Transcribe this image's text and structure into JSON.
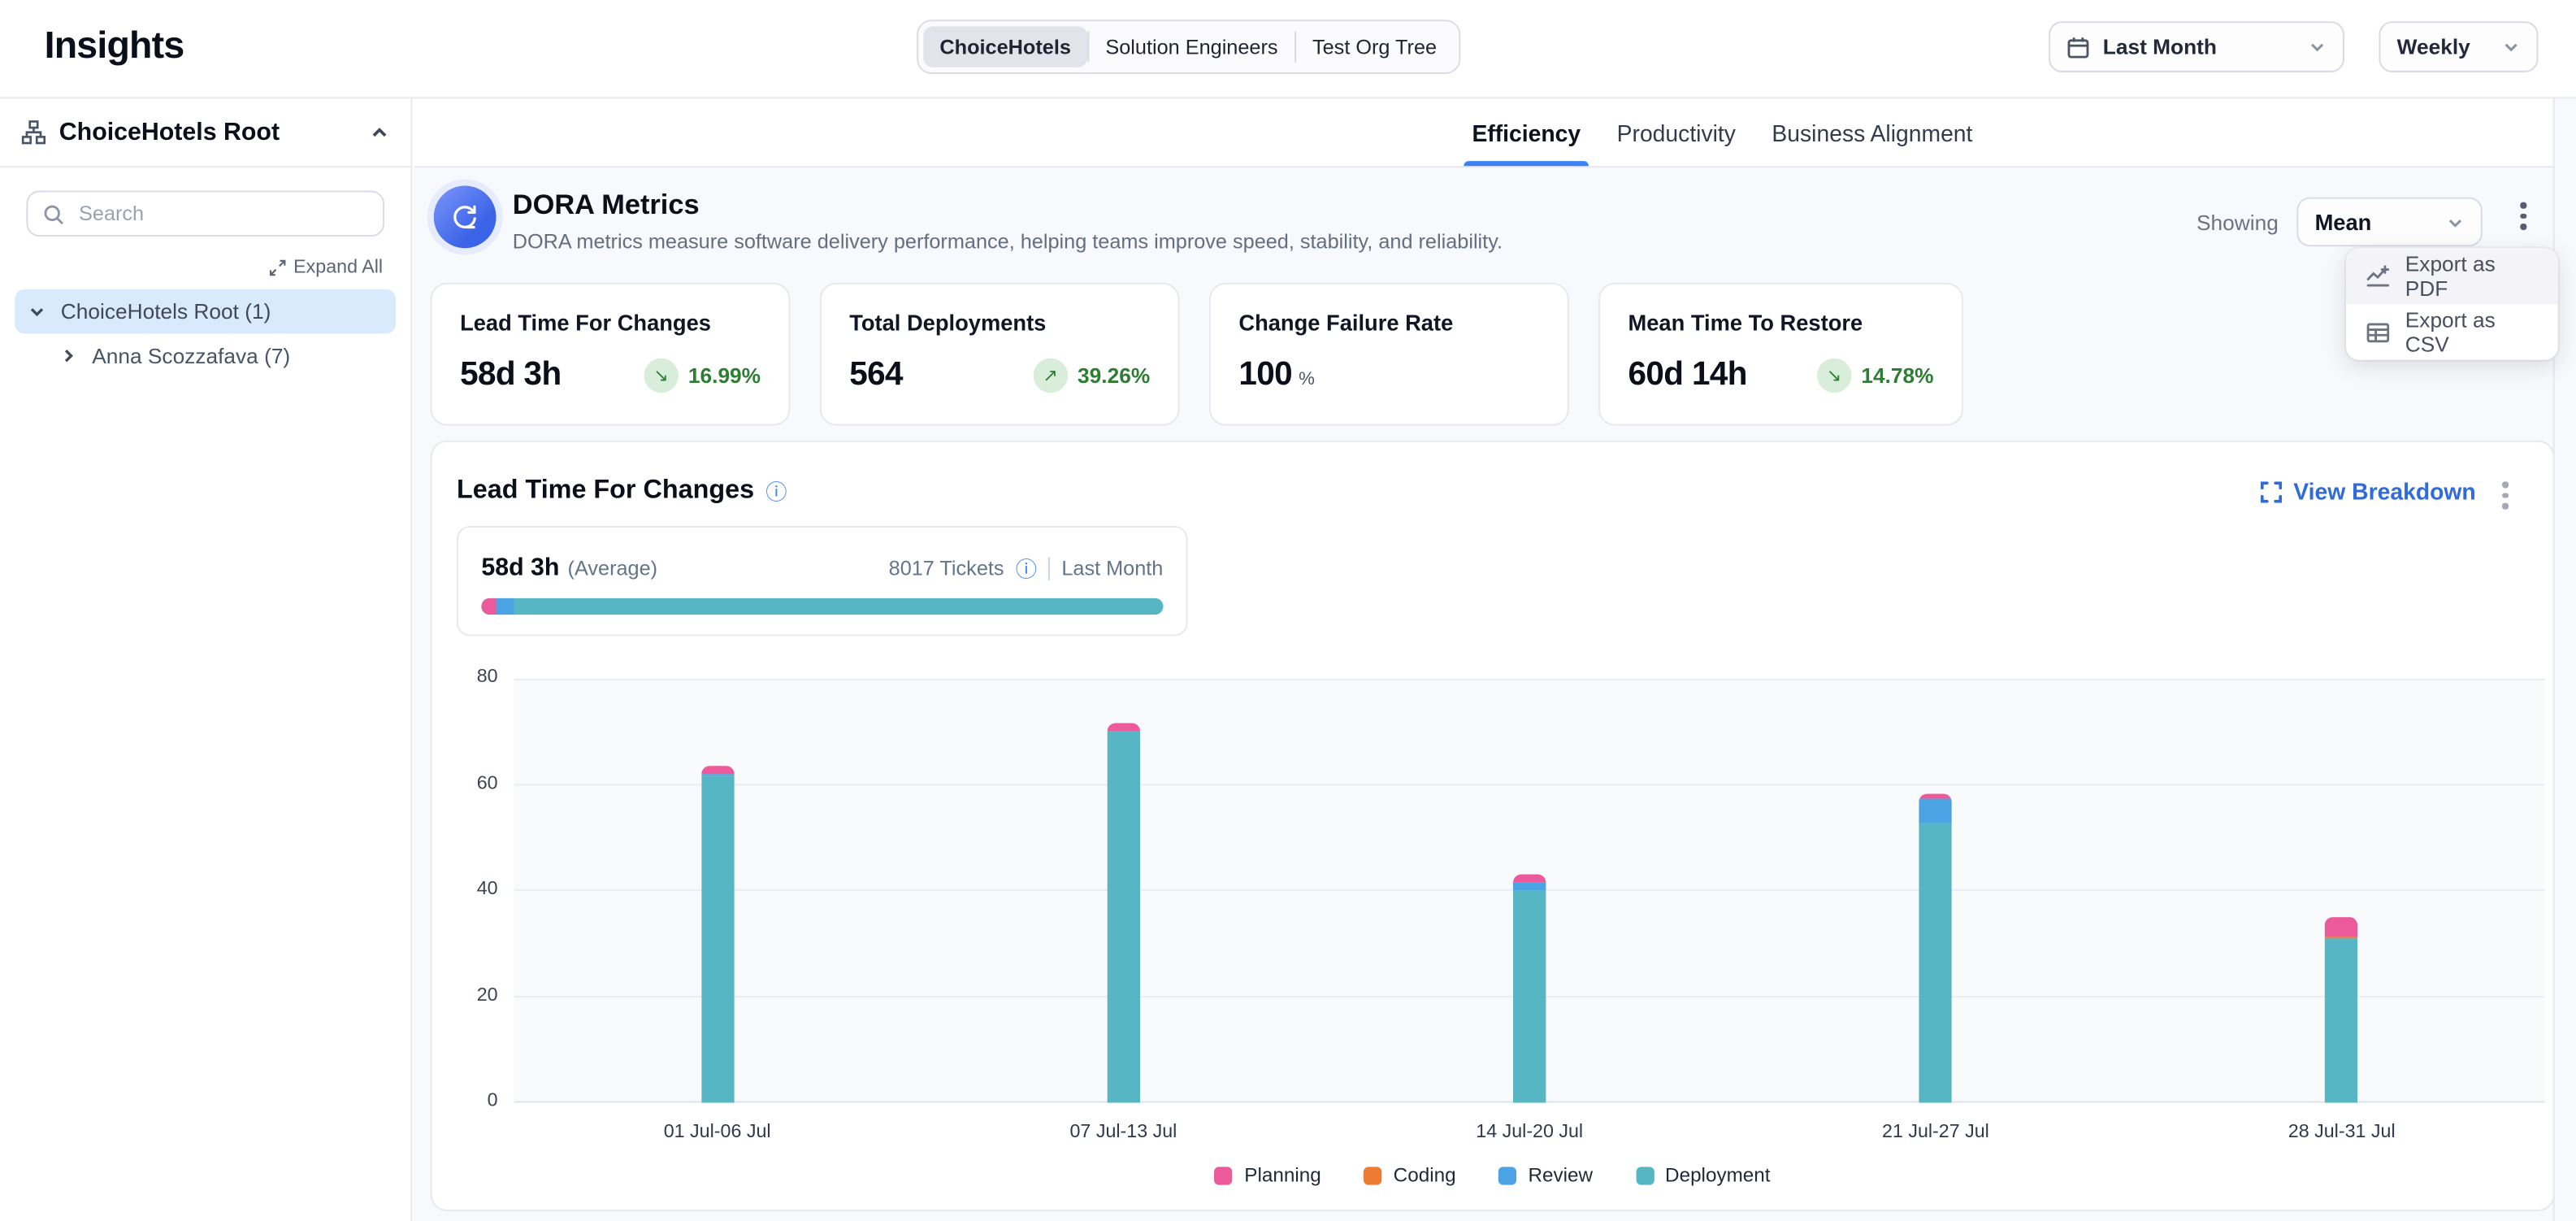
{
  "header": {
    "title": "Insights",
    "org_tabs": [
      {
        "label": "ChoiceHotels",
        "active": true
      },
      {
        "label": "Solution Engineers",
        "active": false
      },
      {
        "label": "Test Org Tree",
        "active": false
      }
    ],
    "period_select": {
      "value": "Last Month"
    },
    "granularity_select": {
      "value": "Weekly"
    }
  },
  "sidebar": {
    "root_label": "ChoiceHotels Root",
    "search_placeholder": "Search",
    "expand_all_label": "Expand All",
    "tree": [
      {
        "label": "ChoiceHotels Root (1)",
        "selected": true,
        "expanded": true
      },
      {
        "label": "Anna Scozzafava (7)",
        "selected": false,
        "expanded": false
      }
    ]
  },
  "tabs": [
    {
      "label": "Efficiency",
      "active": true
    },
    {
      "label": "Productivity",
      "active": false
    },
    {
      "label": "Business Alignment",
      "active": false
    }
  ],
  "dora": {
    "title": "DORA Metrics",
    "description": "DORA metrics measure software delivery performance, helping teams improve speed, stability, and reliability.",
    "showing_label": "Showing",
    "showing_value": "Mean",
    "menu": [
      {
        "label": "Export as PDF"
      },
      {
        "label": "Export as CSV"
      }
    ]
  },
  "metric_cards": [
    {
      "title": "Lead Time For Changes",
      "value": "58d 3h",
      "trend_icon": "↘",
      "change": "16.99%"
    },
    {
      "title": "Total Deployments",
      "value": "564",
      "trend_icon": "↗",
      "change": "39.26%"
    },
    {
      "title": "Change Failure Rate",
      "value": "100",
      "unit": "%"
    },
    {
      "title": "Mean Time To Restore",
      "value": "60d 14h",
      "trend_icon": "↘",
      "change": "14.78%"
    }
  ],
  "lead_time_section": {
    "title": "Lead Time For Changes",
    "view_breakdown_label": "View Breakdown",
    "average_value": "58d 3h",
    "average_label": "(Average)",
    "tickets_label": "8017 Tickets",
    "period_label": "Last Month",
    "summary_bar": {
      "segments": [
        {
          "name": "Planning",
          "color": "#ec5a9c",
          "pct": 2.2
        },
        {
          "name": "Review",
          "color": "#4ba3e3",
          "pct": 2.6
        },
        {
          "name": "Deployment",
          "color": "#57b6c3",
          "pct": 95.2
        }
      ]
    }
  },
  "chart_data": {
    "type": "bar",
    "stacked": true,
    "title": "Lead Time For Changes",
    "categories": [
      "01 Jul-06 Jul",
      "07 Jul-13 Jul",
      "14 Jul-20 Jul",
      "21 Jul-27 Jul",
      "28 Jul-31 Jul"
    ],
    "series": [
      {
        "name": "Planning",
        "color": "#ec5a9c",
        "values": [
          1.6,
          1.5,
          1.5,
          0.8,
          3.5
        ]
      },
      {
        "name": "Coding",
        "color": "#ee7b33",
        "values": [
          0,
          0,
          0,
          0,
          0.4
        ]
      },
      {
        "name": "Review",
        "color": "#4ba3e3",
        "values": [
          0.5,
          0,
          1.6,
          4.6,
          0
        ]
      },
      {
        "name": "Deployment",
        "color": "#57b6c3",
        "values": [
          61.6,
          70.0,
          40.0,
          52.8,
          31.0
        ]
      }
    ],
    "totals": [
      63.7,
      71.5,
      43.1,
      58.2,
      34.9
    ],
    "stack_order_bottom_to_top": [
      "Deployment",
      "Review",
      "Coding",
      "Planning"
    ],
    "ylim": [
      0,
      80
    ],
    "yticks": [
      0,
      20,
      40,
      60,
      80
    ],
    "grid": true,
    "legend_position": "bottom"
  },
  "colors": {
    "accent_blue": "#3b82f6",
    "link_blue": "#2f6bdb",
    "trend_green": "#2e7d32",
    "trend_green_bg": "#d8eedb",
    "selection_blue_bg": "#d8eafc"
  }
}
